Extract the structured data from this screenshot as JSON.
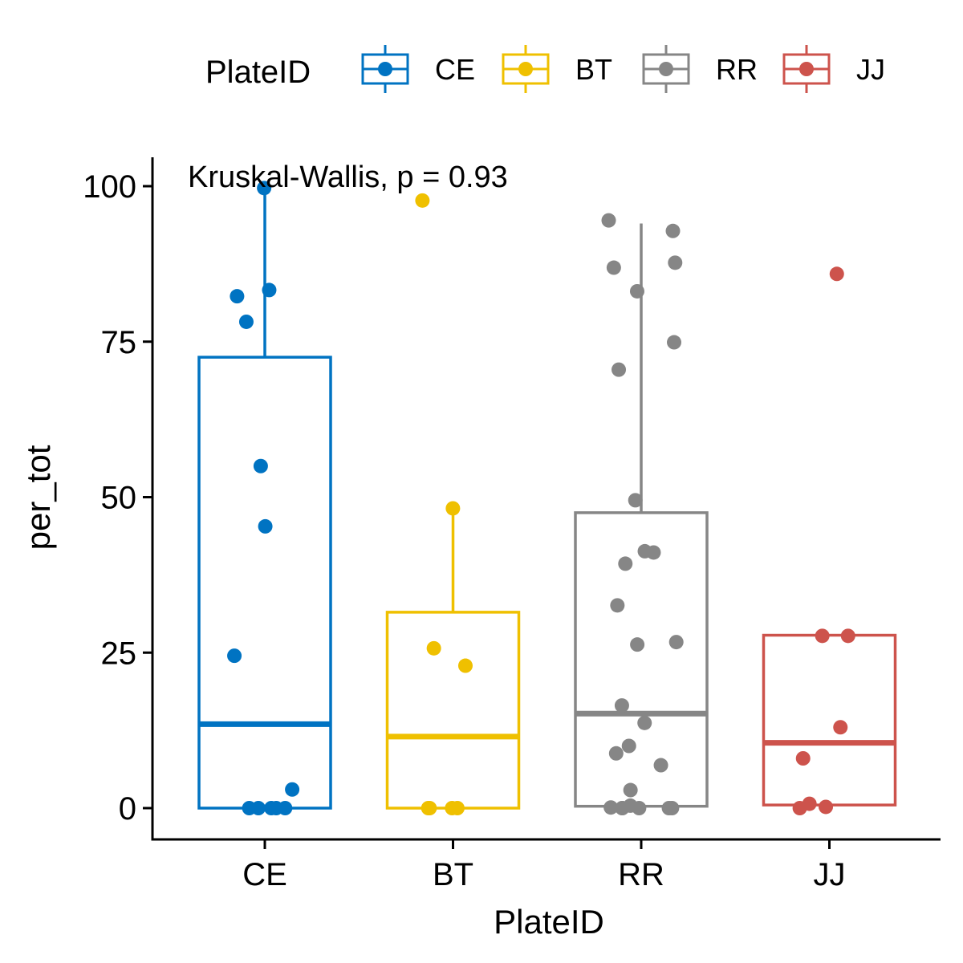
{
  "chart_data": {
    "type": "box",
    "xlabel": "PlateID",
    "ylabel": "per_tot",
    "ylim": [
      -5,
      104
    ],
    "yticks": [
      0,
      25,
      50,
      75,
      100
    ],
    "annotation": "Kruskal-Wallis, p = 0.93",
    "legend": {
      "title": "PlateID",
      "position": "top"
    },
    "categories": [
      "CE",
      "BT",
      "RR",
      "JJ"
    ],
    "colors": {
      "CE": "#0073C2",
      "BT": "#EFC000",
      "RR": "#868686",
      "JJ": "#CD534C"
    },
    "boxes": [
      {
        "name": "CE",
        "min": 0,
        "q1": 0,
        "median": 13.5,
        "q3": 72.5,
        "max": 100
      },
      {
        "name": "BT",
        "min": 0,
        "q1": 0,
        "median": 11.5,
        "q3": 31.5,
        "max": 48
      },
      {
        "name": "RR",
        "min": 0,
        "q1": 0.3,
        "median": 15.2,
        "q3": 47.5,
        "max": 94
      },
      {
        "name": "JJ",
        "min": 0.5,
        "q1": 0.5,
        "median": 10.5,
        "q3": 27.8,
        "max": 27.8
      }
    ],
    "points": [
      {
        "series": "CE",
        "values": [
          99.7,
          83.3,
          82.3,
          78.2,
          55.0,
          45.3,
          24.5,
          3.0,
          0,
          0,
          0,
          0,
          0
        ]
      },
      {
        "series": "BT",
        "values": [
          97.7,
          48.2,
          25.7,
          22.9,
          0,
          0,
          0,
          0
        ]
      },
      {
        "series": "RR",
        "values": [
          94.5,
          92.8,
          87.7,
          86.9,
          83.1,
          74.9,
          70.5,
          49.5,
          41.3,
          41.1,
          39.3,
          32.6,
          26.7,
          26.3,
          16.5,
          13.7,
          10.0,
          8.8,
          6.9,
          2.9,
          0.4,
          0.1,
          0,
          0,
          0,
          0,
          0
        ]
      },
      {
        "series": "JJ",
        "values": [
          85.9,
          27.7,
          27.7,
          13.0,
          8.0,
          0.7,
          0.2,
          0
        ]
      }
    ]
  }
}
